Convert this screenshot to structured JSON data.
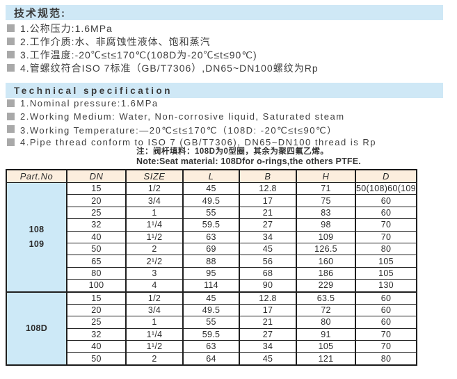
{
  "colors": {
    "section_bar_bg": "#cfe8f6",
    "table_header_bg": "#fceede",
    "part_no_col_bg": "#cde9f7",
    "bullet_gray": "#a9a9a9",
    "border_black": "#1a1a1a",
    "text": "#3d3d3d"
  },
  "chinese_spec": {
    "title": "技术规范:",
    "items": [
      "1.公称压力:1.6MPa",
      "2.工作介质:水、非腐蚀性液体、饱和蒸汽",
      "3.工作温度:-20℃≤t≤170℃(108D为-20℃≤t≤90℃)",
      "4.管螺纹符合ISO 7标准（GB/T7306）,DN65~DN100螺纹为Rp"
    ]
  },
  "english_spec": {
    "title": "Technical specification",
    "items": [
      "1.Nominal pressure:1.6MPa",
      "2.Working Medium: Water, Non-corrosive liquid, Saturated steam",
      "3.Working Temperature:—20℃≤t≤170℃（108D: -20℃≤t≤90℃）",
      "4.Pipe thread conform to ISO 7 (GB/T7306), DN65~DN100 thread is Rp"
    ]
  },
  "note": {
    "line_cn": "注：阀杆填料：108D为0型圈，其余为聚四氟乙烯。",
    "line_en": "Note:Seat material: 108Dfor o-rings,the others PTFE."
  },
  "table": {
    "headers": [
      "Part.No",
      "DN",
      "SIZE",
      "L",
      "B",
      "H",
      "D"
    ],
    "groups": [
      {
        "part_no": [
          "108",
          "109"
        ],
        "rows": [
          [
            "15",
            "1/2",
            "45",
            "12.8",
            "71",
            "50(108)60(109)"
          ],
          [
            "20",
            "3/4",
            "49.5",
            "17",
            "75",
            "60"
          ],
          [
            "25",
            "1",
            "55",
            "21",
            "83",
            "60"
          ],
          [
            "32",
            "1¹/4",
            "59.5",
            "27",
            "98",
            "70"
          ],
          [
            "40",
            "1¹/2",
            "63",
            "34",
            "109",
            "70"
          ],
          [
            "50",
            "2",
            "69",
            "45",
            "126.5",
            "80"
          ],
          [
            "65",
            "2¹/2",
            "88",
            "56",
            "160",
            "105"
          ],
          [
            "80",
            "3",
            "95",
            "68",
            "186",
            "105"
          ],
          [
            "100",
            "4",
            "114",
            "90",
            "229",
            "130"
          ]
        ]
      },
      {
        "part_no": [
          "108D"
        ],
        "rows": [
          [
            "15",
            "1/2",
            "45",
            "12.8",
            "63.5",
            "60"
          ],
          [
            "20",
            "3/4",
            "49.5",
            "17",
            "72",
            "60"
          ],
          [
            "25",
            "1",
            "55",
            "21",
            "80",
            "60"
          ],
          [
            "32",
            "1¹/4",
            "59.5",
            "27",
            "91",
            "70"
          ],
          [
            "40",
            "1¹/2",
            "63",
            "34",
            "105",
            "70"
          ],
          [
            "50",
            "2",
            "64",
            "45",
            "121",
            "80"
          ]
        ]
      }
    ]
  }
}
